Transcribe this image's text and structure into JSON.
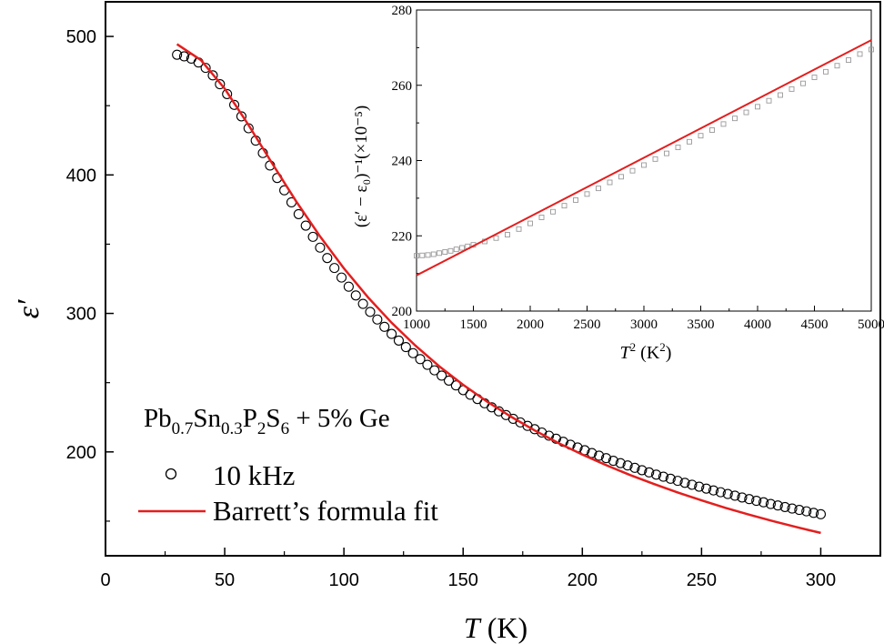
{
  "chart_data": [
    {
      "type": "scatter",
      "xlabel_var": "T",
      "xlabel_unit": "(K)",
      "ylabel": "ε′",
      "xlim": [
        0,
        325
      ],
      "ylim": [
        125,
        525
      ],
      "xticks": [
        0,
        50,
        100,
        150,
        200,
        250,
        300
      ],
      "yticks": [
        200,
        300,
        400,
        500
      ],
      "legend": {
        "placement": "bottom-left",
        "title": {
          "base1": "Pb",
          "sub1": "0.7",
          "base2": "Sn",
          "sub2": "0.3",
          "base3": "P",
          "sub3": "2",
          "base4": "S",
          "sub4": "6",
          "suffix": " + 5% Ge"
        },
        "entries": [
          "10 kHz",
          "Barrett’s formula fit"
        ]
      },
      "series": [
        {
          "name": "10 kHz",
          "marker": "open-circle",
          "color": "#000000",
          "x": [
            30,
            33,
            36,
            39,
            42,
            45,
            48,
            51,
            54,
            57,
            60,
            63,
            66,
            69,
            72,
            75,
            78,
            81,
            84,
            87,
            90,
            93,
            96,
            99,
            102,
            105,
            108,
            111,
            114,
            117,
            120,
            123,
            126,
            129,
            132,
            135,
            138,
            141,
            144,
            147,
            150,
            153,
            156,
            159,
            162,
            165,
            168,
            171,
            174,
            177,
            180,
            183,
            186,
            189,
            192,
            195,
            198,
            201,
            204,
            207,
            210,
            213,
            216,
            219,
            222,
            225,
            228,
            231,
            234,
            237,
            240,
            243,
            246,
            249,
            252,
            255,
            258,
            261,
            264,
            267,
            270,
            273,
            276,
            279,
            282,
            285,
            288,
            291,
            294,
            297,
            300
          ],
          "y": [
            486.8,
            485.6,
            484.0,
            481.2,
            477.3,
            471.9,
            465.5,
            458.4,
            450.6,
            442.3,
            433.7,
            424.8,
            415.8,
            406.8,
            397.8,
            388.9,
            380.2,
            371.7,
            363.4,
            355.3,
            347.5,
            340.0,
            332.8,
            325.9,
            319.3,
            313.0,
            306.9,
            301.1,
            295.6,
            290.3,
            285.2,
            280.4,
            275.7,
            271.3,
            267.0,
            262.9,
            258.9,
            255.1,
            251.5,
            248.0,
            244.6,
            241.3,
            238.2,
            235.1,
            232.2,
            229.3,
            226.6,
            223.9,
            221.3,
            218.8,
            216.4,
            214.0,
            211.7,
            209.5,
            207.3,
            205.2,
            203.2,
            201.2,
            199.2,
            197.3,
            195.5,
            193.6,
            191.9,
            190.2,
            188.5,
            186.8,
            185.2,
            183.6,
            182.1,
            180.6,
            179.1,
            177.7,
            176.3,
            174.9,
            173.5,
            172.2,
            170.9,
            169.6,
            168.4,
            167.1,
            165.9,
            164.7,
            163.6,
            162.4,
            161.3,
            160.2,
            159.1,
            158.1,
            157.1,
            156.0,
            155.0
          ]
        },
        {
          "name": "Barrett’s formula fit",
          "line": "solid",
          "color": "#e41e1e",
          "x": [
            30,
            40,
            50,
            60,
            70,
            80,
            90,
            100,
            110,
            120,
            130,
            140,
            150,
            160,
            170,
            180,
            190,
            200,
            210,
            220,
            230,
            240,
            250,
            260,
            270,
            280,
            290,
            300
          ],
          "y": [
            494.4,
            482.9,
            462.3,
            436.0,
            408.1,
            380.9,
            355.6,
            332.5,
            311.8,
            293.3,
            276.7,
            261.8,
            248.5,
            236.4,
            225.5,
            215.5,
            206.4,
            198.1,
            190.4,
            183.3,
            176.8,
            170.7,
            165.0,
            159.6,
            154.7,
            150.0,
            145.6,
            141.5
          ]
        }
      ]
    },
    {
      "type": "scatter",
      "xlabel_var": "T",
      "xlabel_sup": "2",
      "xlabel_unit": "(K",
      "xlabel_unit_sup": "2",
      "ylabel": "(ε′ − ε₀)⁻¹(×10⁻⁵)",
      "xlim": [
        1000,
        5000
      ],
      "ylim": [
        200,
        280
      ],
      "xticks": [
        1000,
        1500,
        2000,
        2500,
        3000,
        3500,
        4000,
        4500,
        5000
      ],
      "yticks": [
        200,
        220,
        240,
        260,
        280
      ],
      "series": [
        {
          "marker": "open-square",
          "color": "#999999",
          "x": [
            1000,
            1050,
            1100,
            1150,
            1200,
            1250,
            1300,
            1350,
            1400,
            1450,
            1500,
            1600,
            1700,
            1800,
            1900,
            2000,
            2100,
            2200,
            2300,
            2400,
            2500,
            2600,
            2700,
            2800,
            2900,
            3000,
            3100,
            3200,
            3300,
            3400,
            3500,
            3600,
            3700,
            3800,
            3900,
            4000,
            4100,
            4200,
            4300,
            4400,
            4500,
            4600,
            4700,
            4800,
            4900,
            5000
          ],
          "y": [
            214.7,
            214.8,
            214.9,
            215.1,
            215.4,
            215.7,
            216.0,
            216.4,
            216.8,
            217.2,
            217.6,
            218.5,
            219.4,
            220.3,
            221.8,
            223.3,
            224.9,
            226.4,
            228.0,
            229.5,
            231.1,
            232.6,
            234.2,
            235.7,
            237.3,
            238.8,
            240.4,
            241.9,
            243.5,
            245.0,
            246.6,
            248.1,
            249.7,
            251.2,
            252.8,
            254.3,
            255.9,
            257.4,
            259.0,
            260.5,
            262.1,
            263.6,
            265.2,
            266.7,
            268.3,
            269.5
          ]
        },
        {
          "line": "solid",
          "color": "#e41e1e",
          "x": [
            1000,
            5000
          ],
          "y": [
            209.5,
            272.0
          ]
        }
      ]
    }
  ]
}
